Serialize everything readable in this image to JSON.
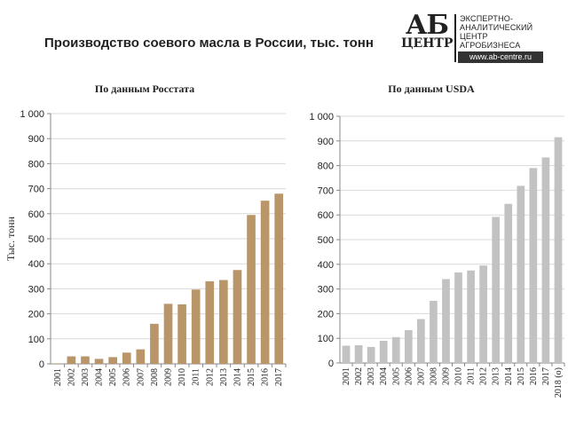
{
  "header": {
    "title": "Производство соевого масла в России, тыс. тонн"
  },
  "logo": {
    "mark_top": "АБ",
    "mark_bottom": "ЦЕНТР",
    "lines": [
      "ЭКСПЕРТНО-",
      "АНАЛИТИЧЕСКИЙ",
      "ЦЕНТР",
      "АГРОБИЗНЕСА"
    ],
    "url": "www.ab-centre.ru"
  },
  "colors": {
    "rosstat_bar": "#b8966a",
    "usda_bar": "#c2c2c2",
    "grid": "#d9d9d9",
    "axis": "#888888"
  },
  "chart_data": [
    {
      "type": "bar",
      "title": "По данным Росстата",
      "ylabel": "Тыс. тонн",
      "xlabel": "",
      "ylim": [
        0,
        1000
      ],
      "yticks": [
        "0",
        "100",
        "200",
        "300",
        "400",
        "500",
        "600",
        "700",
        "800",
        "900",
        "1 000"
      ],
      "grid": true,
      "categories": [
        "2001",
        "2002",
        "2003",
        "2004",
        "2005",
        "2006",
        "2007",
        "2008",
        "2009",
        "2010",
        "2011",
        "2012",
        "2013",
        "2014",
        "2015",
        "2016",
        "2017"
      ],
      "values": [
        2,
        30,
        30,
        20,
        27,
        45,
        58,
        160,
        240,
        238,
        297,
        330,
        335,
        375,
        595,
        652,
        680
      ]
    },
    {
      "type": "bar",
      "title": "По данным USDA",
      "ylabel": "",
      "xlabel": "",
      "ylim": [
        0,
        1000
      ],
      "yticks": [
        "0",
        "100",
        "200",
        "300",
        "400",
        "500",
        "600",
        "700",
        "800",
        "900",
        "1 000"
      ],
      "grid": true,
      "categories": [
        "2001",
        "2002",
        "2003",
        "2004",
        "2005",
        "2006",
        "2007",
        "2008",
        "2009",
        "2010",
        "2011",
        "2012",
        "2013",
        "2014",
        "2015",
        "2016",
        "2017",
        "2018 (о)"
      ],
      "values": [
        70,
        72,
        65,
        90,
        105,
        133,
        178,
        252,
        340,
        367,
        375,
        395,
        592,
        645,
        718,
        790,
        833,
        915
      ]
    }
  ]
}
